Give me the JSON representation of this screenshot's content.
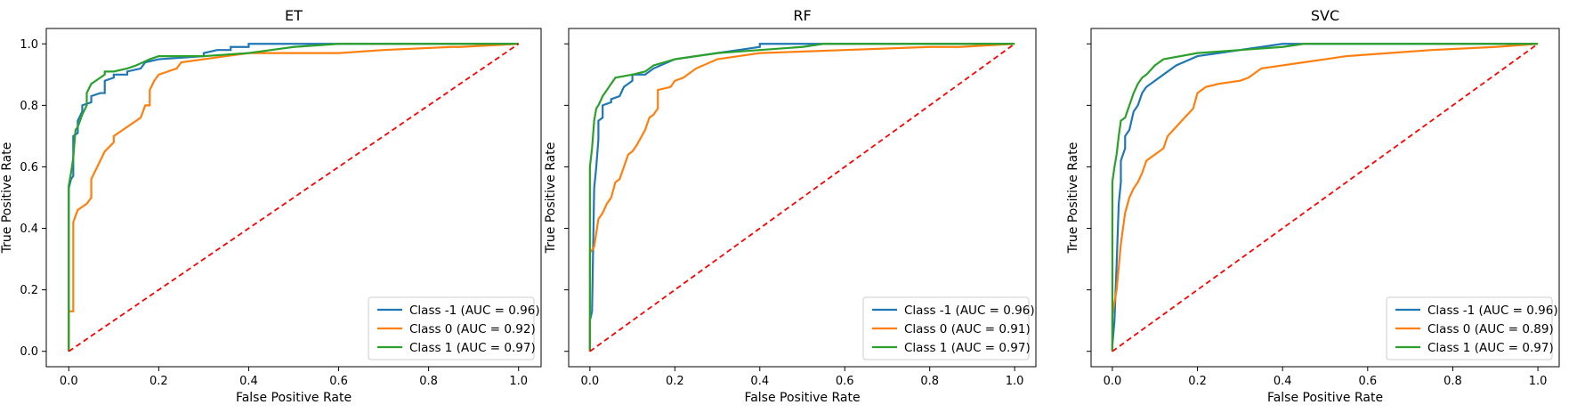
{
  "chart_data": [
    {
      "type": "line",
      "title": "ET",
      "xlabel": "False Positive Rate",
      "ylabel": "True Positive Rate",
      "xlim": [
        -0.05,
        1.05
      ],
      "ylim": [
        -0.05,
        1.05
      ],
      "xticks": [
        "0.0",
        "0.2",
        "0.4",
        "0.6",
        "0.8",
        "1.0"
      ],
      "yticks": [
        "0.0",
        "0.2",
        "0.4",
        "0.6",
        "0.8",
        "1.0"
      ],
      "legend_position": "lower-right",
      "grid": false,
      "series": [
        {
          "name": "Class -1 (AUC = 0.96)",
          "color": "#1f77b4",
          "style": "solid",
          "points": [
            [
              0,
              0
            ],
            [
              0,
              0.53
            ],
            [
              0.005,
              0.56
            ],
            [
              0.01,
              0.57
            ],
            [
              0.01,
              0.7
            ],
            [
              0.02,
              0.71
            ],
            [
              0.02,
              0.75
            ],
            [
              0.03,
              0.78
            ],
            [
              0.03,
              0.8
            ],
            [
              0.05,
              0.81
            ],
            [
              0.05,
              0.83
            ],
            [
              0.07,
              0.84
            ],
            [
              0.08,
              0.84
            ],
            [
              0.08,
              0.88
            ],
            [
              0.1,
              0.89
            ],
            [
              0.1,
              0.9
            ],
            [
              0.13,
              0.9
            ],
            [
              0.13,
              0.91
            ],
            [
              0.16,
              0.92
            ],
            [
              0.17,
              0.94
            ],
            [
              0.2,
              0.95
            ],
            [
              0.3,
              0.96
            ],
            [
              0.3,
              0.97
            ],
            [
              0.33,
              0.98
            ],
            [
              0.36,
              0.98
            ],
            [
              0.36,
              0.99
            ],
            [
              0.4,
              0.99
            ],
            [
              0.4,
              1.0
            ],
            [
              1.0,
              1.0
            ]
          ]
        },
        {
          "name": "Class 0 (AUC = 0.92)",
          "color": "#ff7f0e",
          "style": "solid",
          "points": [
            [
              0,
              0
            ],
            [
              0,
              0.13
            ],
            [
              0.01,
              0.13
            ],
            [
              0.01,
              0.42
            ],
            [
              0.02,
              0.46
            ],
            [
              0.03,
              0.47
            ],
            [
              0.04,
              0.48
            ],
            [
              0.05,
              0.5
            ],
            [
              0.05,
              0.56
            ],
            [
              0.06,
              0.59
            ],
            [
              0.07,
              0.62
            ],
            [
              0.08,
              0.65
            ],
            [
              0.1,
              0.68
            ],
            [
              0.1,
              0.7
            ],
            [
              0.12,
              0.72
            ],
            [
              0.14,
              0.74
            ],
            [
              0.16,
              0.76
            ],
            [
              0.17,
              0.8
            ],
            [
              0.18,
              0.8
            ],
            [
              0.18,
              0.85
            ],
            [
              0.19,
              0.88
            ],
            [
              0.2,
              0.9
            ],
            [
              0.22,
              0.91
            ],
            [
              0.24,
              0.92
            ],
            [
              0.25,
              0.94
            ],
            [
              0.3,
              0.95
            ],
            [
              0.35,
              0.96
            ],
            [
              0.4,
              0.97
            ],
            [
              0.6,
              0.97
            ],
            [
              0.7,
              0.98
            ],
            [
              0.85,
              0.99
            ],
            [
              0.87,
              0.99
            ],
            [
              1.0,
              1.0
            ]
          ]
        },
        {
          "name": "Class 1 (AUC = 0.97)",
          "color": "#2ca02c",
          "style": "solid",
          "points": [
            [
              0,
              0
            ],
            [
              0,
              0.54
            ],
            [
              0.005,
              0.58
            ],
            [
              0.01,
              0.63
            ],
            [
              0.015,
              0.72
            ],
            [
              0.02,
              0.73
            ],
            [
              0.03,
              0.77
            ],
            [
              0.04,
              0.8
            ],
            [
              0.04,
              0.84
            ],
            [
              0.05,
              0.87
            ],
            [
              0.06,
              0.88
            ],
            [
              0.07,
              0.89
            ],
            [
              0.08,
              0.9
            ],
            [
              0.08,
              0.91
            ],
            [
              0.1,
              0.91
            ],
            [
              0.13,
              0.92
            ],
            [
              0.15,
              0.93
            ],
            [
              0.18,
              0.95
            ],
            [
              0.2,
              0.96
            ],
            [
              0.3,
              0.96
            ],
            [
              0.4,
              0.97
            ],
            [
              0.45,
              0.98
            ],
            [
              0.5,
              0.99
            ],
            [
              0.6,
              1.0
            ],
            [
              1.0,
              1.0
            ]
          ]
        },
        {
          "name": "",
          "color": "#ff0000",
          "style": "dashed",
          "points": [
            [
              0,
              0
            ],
            [
              1,
              1
            ]
          ]
        }
      ]
    },
    {
      "type": "line",
      "title": "RF",
      "xlabel": "False Positive Rate",
      "ylabel": "True Positive Rate",
      "xlim": [
        -0.05,
        1.05
      ],
      "ylim": [
        -0.05,
        1.05
      ],
      "xticks": [
        "0.0",
        "0.2",
        "0.4",
        "0.6",
        "0.8",
        "1.0"
      ],
      "yticks": [
        "",
        "",
        "",
        "",
        "",
        ""
      ],
      "legend_position": "lower-right",
      "grid": false,
      "series": [
        {
          "name": "Class -1 (AUC = 0.96)",
          "color": "#1f77b4",
          "style": "solid",
          "points": [
            [
              0,
              0
            ],
            [
              0,
              0.1
            ],
            [
              0.005,
              0.13
            ],
            [
              0.01,
              0.53
            ],
            [
              0.015,
              0.6
            ],
            [
              0.02,
              0.69
            ],
            [
              0.02,
              0.75
            ],
            [
              0.03,
              0.76
            ],
            [
              0.03,
              0.8
            ],
            [
              0.05,
              0.81
            ],
            [
              0.05,
              0.82
            ],
            [
              0.07,
              0.83
            ],
            [
              0.08,
              0.86
            ],
            [
              0.1,
              0.88
            ],
            [
              0.1,
              0.9
            ],
            [
              0.13,
              0.9
            ],
            [
              0.15,
              0.92
            ],
            [
              0.2,
              0.95
            ],
            [
              0.25,
              0.96
            ],
            [
              0.3,
              0.97
            ],
            [
              0.35,
              0.98
            ],
            [
              0.4,
              0.99
            ],
            [
              0.4,
              1.0
            ],
            [
              1.0,
              1.0
            ]
          ]
        },
        {
          "name": "Class 0 (AUC = 0.91)",
          "color": "#ff7f0e",
          "style": "solid",
          "points": [
            [
              0,
              0
            ],
            [
              0,
              0.32
            ],
            [
              0.01,
              0.34
            ],
            [
              0.02,
              0.43
            ],
            [
              0.03,
              0.45
            ],
            [
              0.04,
              0.48
            ],
            [
              0.05,
              0.5
            ],
            [
              0.06,
              0.55
            ],
            [
              0.07,
              0.56
            ],
            [
              0.08,
              0.6
            ],
            [
              0.09,
              0.64
            ],
            [
              0.1,
              0.65
            ],
            [
              0.11,
              0.67
            ],
            [
              0.13,
              0.72
            ],
            [
              0.14,
              0.76
            ],
            [
              0.15,
              0.77
            ],
            [
              0.16,
              0.79
            ],
            [
              0.16,
              0.85
            ],
            [
              0.19,
              0.86
            ],
            [
              0.2,
              0.88
            ],
            [
              0.22,
              0.89
            ],
            [
              0.25,
              0.92
            ],
            [
              0.3,
              0.95
            ],
            [
              0.35,
              0.96
            ],
            [
              0.4,
              0.97
            ],
            [
              0.6,
              0.98
            ],
            [
              0.8,
              0.99
            ],
            [
              0.87,
              0.99
            ],
            [
              1.0,
              1.0
            ]
          ]
        },
        {
          "name": "Class 1 (AUC = 0.97)",
          "color": "#2ca02c",
          "style": "solid",
          "points": [
            [
              0,
              0
            ],
            [
              0,
              0.6
            ],
            [
              0.005,
              0.66
            ],
            [
              0.01,
              0.75
            ],
            [
              0.015,
              0.79
            ],
            [
              0.02,
              0.8
            ],
            [
              0.03,
              0.83
            ],
            [
              0.04,
              0.85
            ],
            [
              0.05,
              0.87
            ],
            [
              0.06,
              0.89
            ],
            [
              0.1,
              0.9
            ],
            [
              0.13,
              0.91
            ],
            [
              0.15,
              0.93
            ],
            [
              0.2,
              0.95
            ],
            [
              0.3,
              0.97
            ],
            [
              0.4,
              0.98
            ],
            [
              0.5,
              0.99
            ],
            [
              0.55,
              1.0
            ],
            [
              1.0,
              1.0
            ]
          ]
        },
        {
          "name": "",
          "color": "#ff0000",
          "style": "dashed",
          "points": [
            [
              0,
              0
            ],
            [
              1,
              1
            ]
          ]
        }
      ]
    },
    {
      "type": "line",
      "title": "SVC",
      "xlabel": "False Positive Rate",
      "ylabel": "True Positive Rate",
      "xlim": [
        -0.05,
        1.05
      ],
      "ylim": [
        -0.05,
        1.05
      ],
      "xticks": [
        "0.0",
        "0.2",
        "0.4",
        "0.6",
        "0.8",
        "1.0"
      ],
      "yticks": [
        "",
        "",
        "",
        "",
        "",
        ""
      ],
      "legend_position": "lower-right",
      "grid": false,
      "series": [
        {
          "name": "Class -1 (AUC = 0.96)",
          "color": "#1f77b4",
          "style": "solid",
          "points": [
            [
              0,
              0
            ],
            [
              0,
              0.02
            ],
            [
              0.005,
              0.1
            ],
            [
              0.01,
              0.28
            ],
            [
              0.015,
              0.48
            ],
            [
              0.02,
              0.55
            ],
            [
              0.02,
              0.62
            ],
            [
              0.03,
              0.66
            ],
            [
              0.03,
              0.7
            ],
            [
              0.04,
              0.72
            ],
            [
              0.05,
              0.78
            ],
            [
              0.06,
              0.8
            ],
            [
              0.07,
              0.84
            ],
            [
              0.08,
              0.86
            ],
            [
              0.1,
              0.88
            ],
            [
              0.12,
              0.9
            ],
            [
              0.15,
              0.93
            ],
            [
              0.2,
              0.96
            ],
            [
              0.25,
              0.97
            ],
            [
              0.3,
              0.98
            ],
            [
              0.35,
              0.99
            ],
            [
              0.4,
              1.0
            ],
            [
              1.0,
              1.0
            ]
          ]
        },
        {
          "name": "Class 0 (AUC = 0.89)",
          "color": "#ff7f0e",
          "style": "solid",
          "points": [
            [
              0,
              0
            ],
            [
              0,
              0.12
            ],
            [
              0.01,
              0.2
            ],
            [
              0.02,
              0.35
            ],
            [
              0.03,
              0.45
            ],
            [
              0.04,
              0.5
            ],
            [
              0.05,
              0.53
            ],
            [
              0.06,
              0.55
            ],
            [
              0.07,
              0.58
            ],
            [
              0.08,
              0.62
            ],
            [
              0.1,
              0.64
            ],
            [
              0.12,
              0.66
            ],
            [
              0.13,
              0.7
            ],
            [
              0.15,
              0.73
            ],
            [
              0.17,
              0.76
            ],
            [
              0.19,
              0.79
            ],
            [
              0.2,
              0.84
            ],
            [
              0.22,
              0.86
            ],
            [
              0.25,
              0.87
            ],
            [
              0.3,
              0.88
            ],
            [
              0.32,
              0.89
            ],
            [
              0.35,
              0.92
            ],
            [
              0.4,
              0.93
            ],
            [
              0.45,
              0.94
            ],
            [
              0.5,
              0.95
            ],
            [
              0.55,
              0.96
            ],
            [
              0.65,
              0.97
            ],
            [
              0.75,
              0.98
            ],
            [
              0.9,
              0.99
            ],
            [
              1.0,
              1.0
            ]
          ]
        },
        {
          "name": "Class 1 (AUC = 0.97)",
          "color": "#2ca02c",
          "style": "solid",
          "points": [
            [
              0,
              0
            ],
            [
              0,
              0.55
            ],
            [
              0.005,
              0.6
            ],
            [
              0.01,
              0.64
            ],
            [
              0.015,
              0.7
            ],
            [
              0.02,
              0.75
            ],
            [
              0.03,
              0.76
            ],
            [
              0.04,
              0.8
            ],
            [
              0.05,
              0.84
            ],
            [
              0.06,
              0.87
            ],
            [
              0.07,
              0.89
            ],
            [
              0.08,
              0.9
            ],
            [
              0.1,
              0.93
            ],
            [
              0.12,
              0.95
            ],
            [
              0.2,
              0.97
            ],
            [
              0.3,
              0.98
            ],
            [
              0.4,
              0.99
            ],
            [
              0.45,
              1.0
            ],
            [
              1.0,
              1.0
            ]
          ]
        },
        {
          "name": "",
          "color": "#ff0000",
          "style": "dashed",
          "points": [
            [
              0,
              0
            ],
            [
              1,
              1
            ]
          ]
        }
      ]
    }
  ]
}
